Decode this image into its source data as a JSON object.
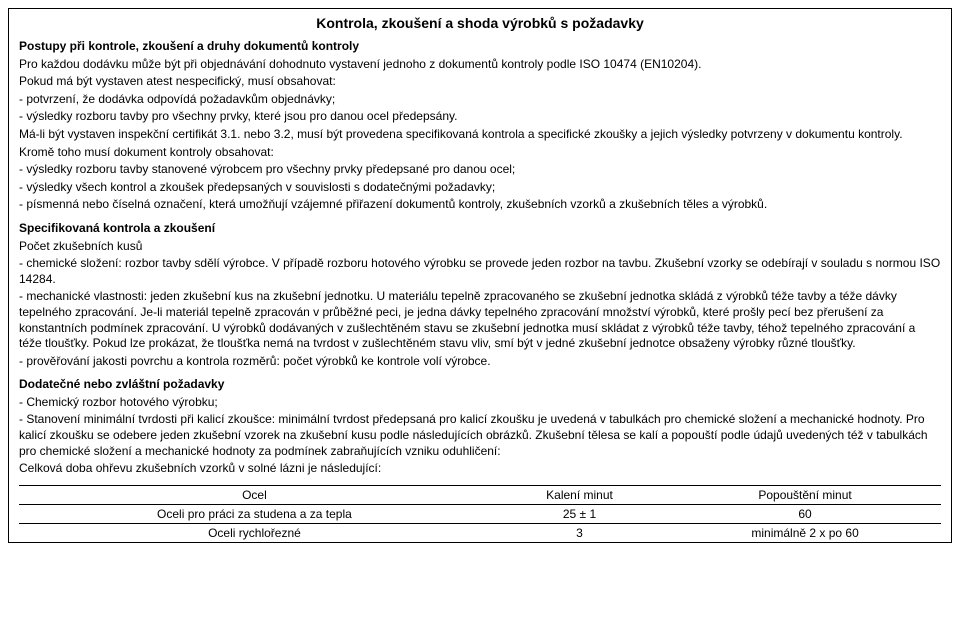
{
  "title": "Kontrola, zkoušení a shoda výrobků s požadavky",
  "section1": {
    "heading": "Postupy při kontrole, zkoušení a druhy dokumentů kontroly",
    "p1": "Pro každou dodávku může být při objednávání dohodnuto vystavení jednoho z dokumentů kontroly podle ISO 10474 (EN10204).",
    "p2": "Pokud má být vystaven atest nespecifický, musí obsahovat:",
    "b1": "- potvrzení, že dodávka odpovídá požadavkům objednávky;",
    "b2": "- výsledky rozboru tavby pro všechny prvky, které jsou pro danou ocel předepsány.",
    "p3": "Má-li být vystaven inspekční certifikát 3.1. nebo 3.2, musí být provedena specifikovaná kontrola a specifické zkoušky a jejich výsledky potvrzeny v dokumentu kontroly.",
    "p4": "Kromě toho musí dokument kontroly obsahovat:",
    "b3": "- výsledky rozboru tavby stanovené výrobcem pro všechny prvky předepsané pro danou ocel;",
    "b4": "- výsledky všech kontrol a zkoušek předepsaných v souvislosti s dodatečnými požadavky;",
    "b5": "- písmenná nebo číselná označení, která umožňují vzájemné přiřazení dokumentů kontroly, zkušebních vzorků a zkušebních těles a výrobků."
  },
  "section2": {
    "heading": "Specifikovaná kontrola a zkoušení",
    "sub": "Počet zkušebních kusů",
    "b1": "- chemické složení: rozbor tavby sdělí výrobce. V případě rozboru hotového výrobku se provede jeden rozbor na tavbu. Zkušební vzorky se odebírají v souladu s normou  ISO 14284.",
    "b2": "- mechanické vlastnosti: jeden zkušební kus na zkušební jednotku. U materiálu tepelně zpracovaného se zkušební jednotka skládá z výrobků téže tavby a téže dávky tepelného zpracování. Je-li materiál tepelně zpracován v průběžné peci, je jedna dávky tepelného zpracování množství výrobků, které prošly pecí bez přerušení za konstantních podmínek zpracování. U výrobků dodávaných v zušlechtěném stavu se zkušební jednotka musí skládat z výrobků téže tavby, téhož tepelného zpracování a téže tloušťky. Pokud lze prokázat, že tloušťka nemá na tvrdost v zušlechtěném stavu vliv, smí být v jedné zkušební jednotce obsaženy výrobky různé tloušťky.",
    "b3": "- prověřování jakosti povrchu a kontrola rozměrů: počet výrobků ke kontrole volí výrobce."
  },
  "section3": {
    "heading": "Dodatečné nebo zvláštní požadavky",
    "b1": "- Chemický rozbor hotového výrobku;",
    "b2": "- Stanovení minimální tvrdosti při kalicí zkoušce: minimální tvrdost předepsaná pro kalicí zkoušku je uvedená v tabulkách pro chemické složení a mechanické hodnoty. Pro kalicí zkoušku se odebere jeden zkušební vzorek na zkušební kusu podle následujících obrázků. Zkušební tělesa se kalí a popouští podle údajů uvedených též v tabulkách pro chemické složení a mechanické hodnoty za podmínek zabraňujících vzniku oduhličení:",
    "p1": "Celková doba ohřevu zkušebních vzorků v solné lázni je následující:"
  },
  "table": {
    "headers": [
      "Ocel",
      "Kalení minut",
      "Popouštění minut"
    ],
    "rows": [
      [
        "Oceli pro práci za studena a za tepla",
        "25 ± 1",
        "60"
      ],
      [
        "Oceli rychlořezné",
        "3",
        "minimálně 2 x po 60"
      ]
    ]
  }
}
